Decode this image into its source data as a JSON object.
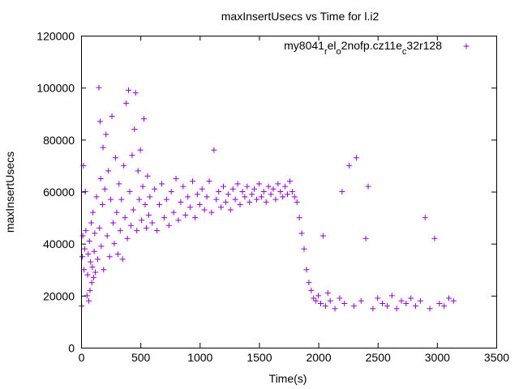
{
  "chart_data": {
    "type": "scatter",
    "title": "maxInsertUsecs vs Time for l.i2",
    "xlabel": "Time(s)",
    "ylabel": "maxInsertUsecs",
    "xlim": [
      0,
      3500
    ],
    "ylim": [
      0,
      120000
    ],
    "x_ticks": [
      0,
      500,
      1000,
      1500,
      2000,
      2500,
      3000,
      3500
    ],
    "x_tick_labels": [
      "0",
      "500",
      "1000",
      "1500",
      "2000",
      "2500",
      "3000",
      "3500"
    ],
    "y_ticks": [
      0,
      20000,
      40000,
      60000,
      80000,
      100000,
      120000
    ],
    "y_tick_labels": [
      "0",
      "20000",
      "40000",
      "60000",
      "80000",
      "100000",
      "120000"
    ],
    "grid": false,
    "legend_position": "top-right",
    "marker": "plus",
    "series": [
      {
        "name": "my8041_rel_o2nofp.cz11e_c32r128",
        "legend_parts": [
          {
            "text": "my8041",
            "shift": "base"
          },
          {
            "text": "r",
            "shift": "sub"
          },
          {
            "text": "el",
            "shift": "base"
          },
          {
            "text": "o",
            "shift": "sub"
          },
          {
            "text": "2nofp.cz11e",
            "shift": "base"
          },
          {
            "text": "c",
            "shift": "sub"
          },
          {
            "text": "32r128",
            "shift": "base"
          }
        ],
        "color": "#9400d3",
        "points": [
          [
            5,
            16000
          ],
          [
            10,
            35000
          ],
          [
            15,
            43000
          ],
          [
            20,
            70000
          ],
          [
            25,
            30000
          ],
          [
            30,
            38000
          ],
          [
            35,
            60000
          ],
          [
            40,
            45000
          ],
          [
            50,
            20000
          ],
          [
            55,
            28000
          ],
          [
            60,
            36000
          ],
          [
            65,
            18000
          ],
          [
            70,
            41000
          ],
          [
            75,
            22000
          ],
          [
            80,
            33000
          ],
          [
            85,
            48000
          ],
          [
            90,
            25000
          ],
          [
            95,
            31000
          ],
          [
            100,
            52000
          ],
          [
            105,
            27000
          ],
          [
            110,
            37000
          ],
          [
            115,
            44000
          ],
          [
            120,
            29000
          ],
          [
            130,
            58000
          ],
          [
            140,
            34000
          ],
          [
            150,
            100000
          ],
          [
            155,
            46000
          ],
          [
            160,
            87000
          ],
          [
            165,
            65000
          ],
          [
            170,
            39000
          ],
          [
            180,
            55000
          ],
          [
            185,
            77000
          ],
          [
            190,
            30000
          ],
          [
            200,
            61000
          ],
          [
            210,
            82000
          ],
          [
            220,
            43000
          ],
          [
            230,
            68000
          ],
          [
            240,
            35000
          ],
          [
            250,
            57000
          ],
          [
            260,
            89000
          ],
          [
            270,
            48000
          ],
          [
            280,
            40000
          ],
          [
            290,
            73000
          ],
          [
            300,
            52000
          ],
          [
            310,
            36000
          ],
          [
            320,
            63000
          ],
          [
            330,
            45000
          ],
          [
            340,
            57000
          ],
          [
            350,
            34000
          ],
          [
            360,
            70000
          ],
          [
            370,
            50000
          ],
          [
            380,
            94000
          ],
          [
            390,
            42000
          ],
          [
            400,
            99000
          ],
          [
            410,
            60000
          ],
          [
            420,
            47000
          ],
          [
            430,
            74000
          ],
          [
            440,
            53000
          ],
          [
            450,
            84000
          ],
          [
            460,
            98000
          ],
          [
            470,
            45000
          ],
          [
            480,
            68000
          ],
          [
            490,
            57000
          ],
          [
            500,
            76000
          ],
          [
            510,
            49000
          ],
          [
            520,
            62000
          ],
          [
            530,
            88000
          ],
          [
            540,
            55000
          ],
          [
            550,
            46000
          ],
          [
            560,
            66000
          ],
          [
            570,
            51000
          ],
          [
            580,
            58000
          ],
          [
            600,
            48000
          ],
          [
            620,
            61000
          ],
          [
            640,
            45000
          ],
          [
            660,
            55000
          ],
          [
            680,
            63000
          ],
          [
            700,
            50000
          ],
          [
            720,
            57000
          ],
          [
            740,
            47000
          ],
          [
            760,
            60000
          ],
          [
            780,
            52000
          ],
          [
            800,
            65000
          ],
          [
            820,
            49000
          ],
          [
            840,
            56000
          ],
          [
            860,
            62000
          ],
          [
            880,
            51000
          ],
          [
            900,
            58000
          ],
          [
            920,
            54000
          ],
          [
            940,
            64000
          ],
          [
            960,
            50000
          ],
          [
            980,
            59000
          ],
          [
            1000,
            55000
          ],
          [
            1020,
            61000
          ],
          [
            1040,
            53000
          ],
          [
            1060,
            58000
          ],
          [
            1080,
            64000
          ],
          [
            1100,
            52000
          ],
          [
            1120,
            76000
          ],
          [
            1140,
            57000
          ],
          [
            1160,
            60000
          ],
          [
            1180,
            54000
          ],
          [
            1200,
            62000
          ],
          [
            1220,
            56000
          ],
          [
            1240,
            59000
          ],
          [
            1260,
            53000
          ],
          [
            1280,
            61000
          ],
          [
            1300,
            57000
          ],
          [
            1320,
            63000
          ],
          [
            1340,
            55000
          ],
          [
            1360,
            60000
          ],
          [
            1380,
            58000
          ],
          [
            1400,
            62000
          ],
          [
            1420,
            56000
          ],
          [
            1440,
            59000
          ],
          [
            1460,
            61000
          ],
          [
            1480,
            57000
          ],
          [
            1500,
            63000
          ],
          [
            1520,
            58000
          ],
          [
            1540,
            60000
          ],
          [
            1560,
            56000
          ],
          [
            1580,
            62000
          ],
          [
            1600,
            59000
          ],
          [
            1620,
            61000
          ],
          [
            1640,
            57000
          ],
          [
            1660,
            63000
          ],
          [
            1680,
            60000
          ],
          [
            1700,
            58000
          ],
          [
            1720,
            62000
          ],
          [
            1740,
            59000
          ],
          [
            1760,
            64000
          ],
          [
            1780,
            60000
          ],
          [
            1800,
            58000
          ],
          [
            1820,
            56000
          ],
          [
            1840,
            50000
          ],
          [
            1860,
            44000
          ],
          [
            1880,
            38000
          ],
          [
            1900,
            30000
          ],
          [
            1920,
            25000
          ],
          [
            1940,
            22000
          ],
          [
            1960,
            19000
          ],
          [
            1980,
            18000
          ],
          [
            2000,
            20000
          ],
          [
            2020,
            17000
          ],
          [
            2040,
            43000
          ],
          [
            2060,
            16000
          ],
          [
            2080,
            21000
          ],
          [
            2100,
            18000
          ],
          [
            2140,
            15000
          ],
          [
            2180,
            19000
          ],
          [
            2200,
            60000
          ],
          [
            2220,
            17000
          ],
          [
            2260,
            70000
          ],
          [
            2300,
            16000
          ],
          [
            2320,
            73000
          ],
          [
            2360,
            18000
          ],
          [
            2400,
            42000
          ],
          [
            2420,
            62000
          ],
          [
            2460,
            15000
          ],
          [
            2500,
            19000
          ],
          [
            2540,
            17000
          ],
          [
            2580,
            16000
          ],
          [
            2620,
            20000
          ],
          [
            2660,
            15000
          ],
          [
            2700,
            18000
          ],
          [
            2740,
            17000
          ],
          [
            2780,
            19000
          ],
          [
            2820,
            16000
          ],
          [
            2860,
            18000
          ],
          [
            2900,
            50000
          ],
          [
            2940,
            15000
          ],
          [
            2980,
            42000
          ],
          [
            3020,
            17000
          ],
          [
            3060,
            16000
          ],
          [
            3100,
            19000
          ],
          [
            3140,
            18000
          ]
        ]
      }
    ]
  }
}
